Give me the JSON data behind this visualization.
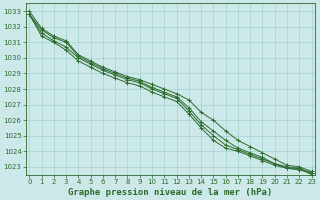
{
  "x": [
    0,
    1,
    2,
    3,
    4,
    5,
    6,
    7,
    8,
    9,
    10,
    11,
    12,
    13,
    14,
    15,
    16,
    17,
    18,
    19,
    20,
    21,
    22,
    23
  ],
  "lines": [
    [
      1033.0,
      1031.9,
      1031.4,
      1031.1,
      1030.2,
      1029.8,
      1029.4,
      1029.1,
      1028.8,
      1028.6,
      1028.3,
      1028.0,
      1027.7,
      1027.3,
      1026.5,
      1026.0,
      1025.3,
      1024.7,
      1024.3,
      1023.9,
      1023.5,
      1023.1,
      1023.0,
      1022.7
    ],
    [
      1032.8,
      1031.8,
      1031.3,
      1031.0,
      1030.1,
      1029.7,
      1029.3,
      1029.0,
      1028.7,
      1028.5,
      1028.1,
      1027.8,
      1027.5,
      1026.8,
      1025.9,
      1025.3,
      1024.7,
      1024.2,
      1023.9,
      1023.6,
      1023.2,
      1022.9,
      1022.9,
      1022.6
    ],
    [
      1032.8,
      1031.4,
      1031.0,
      1030.5,
      1029.8,
      1029.4,
      1029.0,
      1028.7,
      1028.4,
      1028.2,
      1027.8,
      1027.5,
      1027.2,
      1026.4,
      1025.5,
      1024.7,
      1024.2,
      1024.0,
      1023.7,
      1023.4,
      1023.1,
      1022.9,
      1022.8,
      1022.6
    ],
    [
      1032.8,
      1031.6,
      1031.1,
      1030.7,
      1030.0,
      1029.6,
      1029.2,
      1028.9,
      1028.6,
      1028.4,
      1028.0,
      1027.7,
      1027.4,
      1026.6,
      1025.7,
      1025.0,
      1024.4,
      1024.1,
      1023.8,
      1023.5,
      1023.2,
      1023.0,
      1022.9,
      1022.5
    ]
  ],
  "line_color": "#2d6a2d",
  "marker": "+",
  "bg_color": "#cce8e8",
  "grid_color": "#99cccc",
  "text_color": "#2d6a2d",
  "xlabel": "Graphe pression niveau de la mer (hPa)",
  "ylim": [
    1022.5,
    1033.5
  ],
  "xlim": [
    -0.3,
    23.3
  ],
  "yticks": [
    1023,
    1024,
    1025,
    1026,
    1027,
    1028,
    1029,
    1030,
    1031,
    1032,
    1033
  ],
  "xticks": [
    0,
    1,
    2,
    3,
    4,
    5,
    6,
    7,
    8,
    9,
    10,
    11,
    12,
    13,
    14,
    15,
    16,
    17,
    18,
    19,
    20,
    21,
    22,
    23
  ],
  "tick_fontsize": 5.0,
  "xlabel_fontsize": 6.5,
  "line_width": 0.7,
  "marker_size": 2.5
}
